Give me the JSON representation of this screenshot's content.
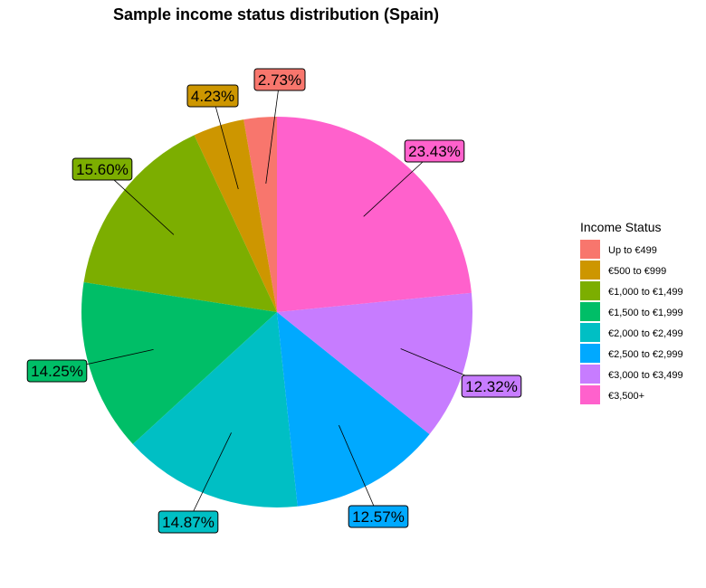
{
  "chart_data": {
    "type": "pie",
    "title": "Sample income status distribution (Spain)",
    "legend_title": "Income Status",
    "legend_position": "right",
    "categories": [
      "Up to €499",
      "€500 to €999",
      "€1,000 to €1,499",
      "€1,500 to €1,999",
      "€2,000 to €2,499",
      "€2,500 to €2,999",
      "€3,000 to €3,499",
      "€3,500+"
    ],
    "values": [
      2.73,
      4.23,
      15.6,
      14.25,
      14.87,
      12.57,
      12.32,
      23.43
    ],
    "labels": [
      "2.73%",
      "4.23%",
      "15.60%",
      "14.25%",
      "14.87%",
      "12.57%",
      "12.32%",
      "23.43%"
    ],
    "colors": [
      "#F8766D",
      "#CD9600",
      "#7CAE00",
      "#00BE67",
      "#00BFC4",
      "#00A9FF",
      "#C77CFF",
      "#FF61CC"
    ]
  }
}
